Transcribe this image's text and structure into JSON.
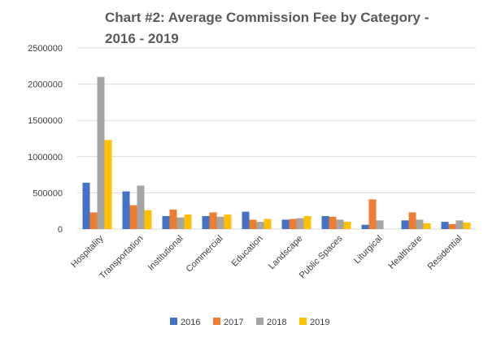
{
  "chart_data": {
    "type": "bar",
    "title": [
      "Chart #2:  Average Commission Fee by Category -",
      "2016 - 2019"
    ],
    "xlabel": "",
    "ylabel": "",
    "ylim": [
      0,
      2500000
    ],
    "y_ticks": [
      "0",
      "500000",
      "1000000",
      "1500000",
      "2000000",
      "2500000"
    ],
    "grid": "horizontal",
    "legend_position": "bottom",
    "categories": [
      "Hospitality",
      "Transportation",
      "Institutional",
      "Commercial",
      "Education",
      "Landscape",
      "Public Spaces",
      "Liturgical",
      "Healthcare",
      "Residential"
    ],
    "series": [
      {
        "name": "2016",
        "color": "#4472c4",
        "values": [
          640000,
          520000,
          180000,
          180000,
          240000,
          130000,
          180000,
          60000,
          120000,
          100000
        ]
      },
      {
        "name": "2017",
        "color": "#ed7d31",
        "values": [
          230000,
          330000,
          270000,
          230000,
          130000,
          140000,
          170000,
          410000,
          230000,
          70000
        ]
      },
      {
        "name": "2018",
        "color": "#a5a5a5",
        "values": [
          2100000,
          600000,
          160000,
          170000,
          100000,
          150000,
          130000,
          120000,
          130000,
          120000
        ]
      },
      {
        "name": "2019",
        "color": "#ffc000",
        "values": [
          1230000,
          260000,
          200000,
          200000,
          140000,
          180000,
          100000,
          0,
          80000,
          90000
        ]
      }
    ]
  }
}
